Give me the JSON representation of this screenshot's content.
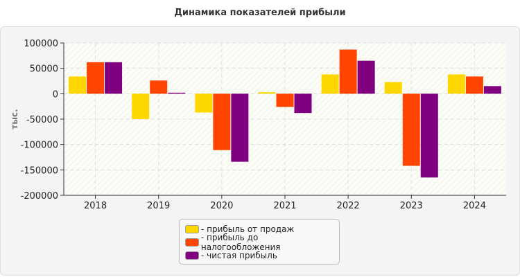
{
  "chart_data": {
    "type": "bar",
    "title": "Динамика показателей прибыли",
    "ylabel": "тыс.",
    "xlabel": "",
    "categories": [
      "2018",
      "2019",
      "2020",
      "2021",
      "2022",
      "2023",
      "2024"
    ],
    "ylim": [
      -200000,
      100000
    ],
    "yticks": [
      100000,
      50000,
      0,
      -50000,
      -100000,
      -150000,
      -200000
    ],
    "grid": true,
    "legend_position": "bottom",
    "series": [
      {
        "name": "- прибыль от продаж",
        "color": "#ffd700",
        "values": [
          34000,
          -50000,
          -37000,
          3000,
          38000,
          23000,
          38000
        ]
      },
      {
        "name": "- прибыль до налогообложения",
        "color": "#ff4500",
        "values": [
          62000,
          26000,
          -111000,
          -26000,
          87000,
          -142000,
          34000
        ]
      },
      {
        "name": "- чистая прибыль",
        "color": "#800080",
        "values": [
          62000,
          2000,
          -134000,
          -38000,
          65000,
          -165000,
          15000
        ]
      }
    ]
  }
}
